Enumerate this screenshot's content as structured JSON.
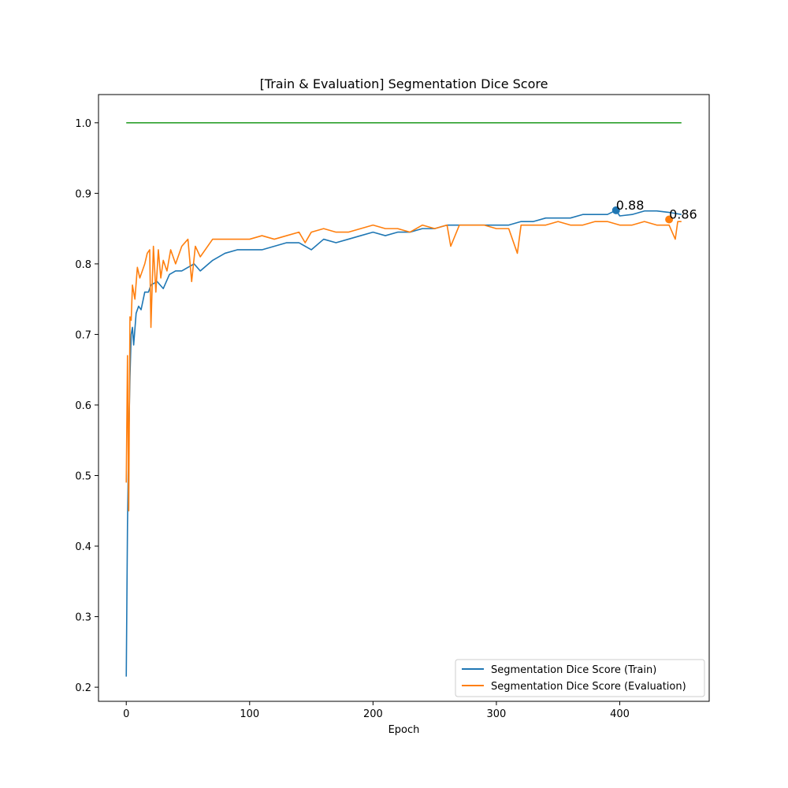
{
  "chart_data": {
    "type": "line",
    "title": "[Train & Evaluation] Segmentation Dice Score",
    "xlabel": "Epoch",
    "ylabel": "",
    "xlim": [
      -22.5,
      472.5
    ],
    "ylim": [
      0.18,
      1.04
    ],
    "xticks": [
      0,
      100,
      200,
      300,
      400
    ],
    "yticks": [
      0.2,
      0.3,
      0.4,
      0.5,
      0.6,
      0.7,
      0.8,
      0.9,
      1.0
    ],
    "ytick_labels": [
      "0.2",
      "0.3",
      "0.4",
      "0.5",
      "0.6",
      "0.7",
      "0.8",
      "0.9",
      "1.0"
    ],
    "grid": false,
    "legend_position": "lower-right",
    "series": [
      {
        "name": "Segmentation Dice Score (Train)",
        "color": "#1f77b4",
        "x": [
          0,
          1,
          2,
          3,
          4,
          5,
          6,
          8,
          10,
          12,
          15,
          18,
          20,
          25,
          30,
          35,
          40,
          45,
          50,
          55,
          60,
          70,
          80,
          90,
          100,
          110,
          120,
          130,
          140,
          150,
          160,
          170,
          180,
          190,
          200,
          210,
          220,
          230,
          240,
          250,
          260,
          270,
          280,
          290,
          300,
          310,
          320,
          330,
          340,
          350,
          360,
          370,
          380,
          390,
          397,
          400,
          410,
          420,
          430,
          440,
          450
        ],
        "values": [
          0.215,
          0.43,
          0.55,
          0.64,
          0.7,
          0.71,
          0.685,
          0.73,
          0.74,
          0.735,
          0.76,
          0.76,
          0.77,
          0.775,
          0.765,
          0.785,
          0.79,
          0.79,
          0.795,
          0.8,
          0.79,
          0.805,
          0.815,
          0.82,
          0.82,
          0.82,
          0.825,
          0.83,
          0.83,
          0.82,
          0.835,
          0.83,
          0.835,
          0.84,
          0.845,
          0.84,
          0.845,
          0.845,
          0.85,
          0.85,
          0.855,
          0.855,
          0.855,
          0.855,
          0.855,
          0.855,
          0.86,
          0.86,
          0.865,
          0.865,
          0.865,
          0.87,
          0.87,
          0.87,
          0.876,
          0.868,
          0.87,
          0.875,
          0.875,
          0.873,
          0.87
        ]
      },
      {
        "name": "Segmentation Dice Score (Evaluation)",
        "color": "#ff7f0e",
        "x": [
          0,
          1,
          2,
          3,
          4,
          5,
          7,
          9,
          11,
          13,
          15,
          17,
          19,
          20,
          22,
          24,
          26,
          28,
          30,
          33,
          36,
          40,
          45,
          50,
          53,
          56,
          60,
          70,
          80,
          90,
          100,
          110,
          120,
          130,
          140,
          145,
          150,
          160,
          170,
          180,
          190,
          200,
          210,
          220,
          230,
          240,
          250,
          260,
          263,
          270,
          280,
          290,
          300,
          310,
          317,
          320,
          330,
          340,
          350,
          360,
          370,
          380,
          390,
          400,
          410,
          420,
          430,
          440,
          445,
          447,
          450
        ],
        "values": [
          0.49,
          0.67,
          0.45,
          0.725,
          0.72,
          0.77,
          0.75,
          0.795,
          0.78,
          0.79,
          0.8,
          0.815,
          0.82,
          0.71,
          0.825,
          0.76,
          0.82,
          0.78,
          0.805,
          0.79,
          0.82,
          0.8,
          0.825,
          0.835,
          0.775,
          0.825,
          0.81,
          0.835,
          0.835,
          0.835,
          0.835,
          0.84,
          0.835,
          0.84,
          0.845,
          0.83,
          0.845,
          0.85,
          0.845,
          0.845,
          0.85,
          0.855,
          0.85,
          0.85,
          0.845,
          0.855,
          0.85,
          0.855,
          0.825,
          0.855,
          0.855,
          0.855,
          0.85,
          0.85,
          0.815,
          0.855,
          0.855,
          0.855,
          0.86,
          0.855,
          0.855,
          0.86,
          0.86,
          0.855,
          0.855,
          0.86,
          0.855,
          0.855,
          0.835,
          0.86,
          0.86
        ]
      },
      {
        "name": "",
        "color": "#2ca02c",
        "x": [
          0,
          450
        ],
        "values": [
          1.0,
          1.0
        ]
      }
    ],
    "annotations": [
      {
        "text": "0.88",
        "x": 397,
        "y": 0.876,
        "series": 0
      },
      {
        "text": "0.86",
        "x": 440,
        "y": 0.863,
        "series": 1
      }
    ]
  }
}
